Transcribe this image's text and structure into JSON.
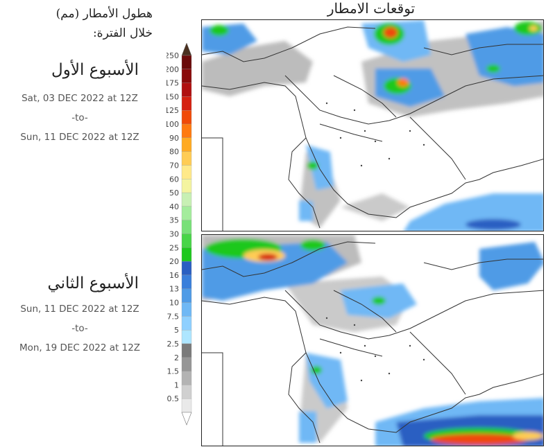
{
  "title": "توقعات الامطار",
  "legend": {
    "title_line1": "هطول الأمطار (مم)",
    "title_line2": "خلال الفترة:",
    "levels": [
      "0.5",
      "1",
      "1.5",
      "2",
      "2.5",
      "5",
      "7.5",
      "10",
      "13",
      "16",
      "20",
      "25",
      "30",
      "35",
      "40",
      "50",
      "60",
      "70",
      "80",
      "90",
      "100",
      "125",
      "150",
      "175",
      "200",
      "250"
    ],
    "colors": [
      "#e9e9e9",
      "#d0d0d0",
      "#b3b3b3",
      "#969696",
      "#7a7a7a",
      "#aee6ff",
      "#8fd0ff",
      "#6fb8f5",
      "#4f9be6",
      "#3a7fdb",
      "#2a5fc2",
      "#1ec81e",
      "#48d548",
      "#78e078",
      "#a4ec9c",
      "#c8f0b4",
      "#f4f4a0",
      "#ffe98a",
      "#ffcc55",
      "#ffaa22",
      "#ff7a10",
      "#f04a08",
      "#d52010",
      "#b01010",
      "#8a0a0a",
      "#6a0a0a",
      "#4a3020"
    ]
  },
  "periods": [
    {
      "label": "الأسبوع الأول",
      "start": "Sat, 03 DEC 2022 at 12Z",
      "sep": "-to-",
      "end": "Sun, 11 DEC 2022 at 12Z"
    },
    {
      "label": "الأسبوع الثاني",
      "start": "Sun, 11 DEC 2022 at 12Z",
      "sep": "-to-",
      "end": "Mon, 19 DEC 2022 at 12Z"
    }
  ]
}
